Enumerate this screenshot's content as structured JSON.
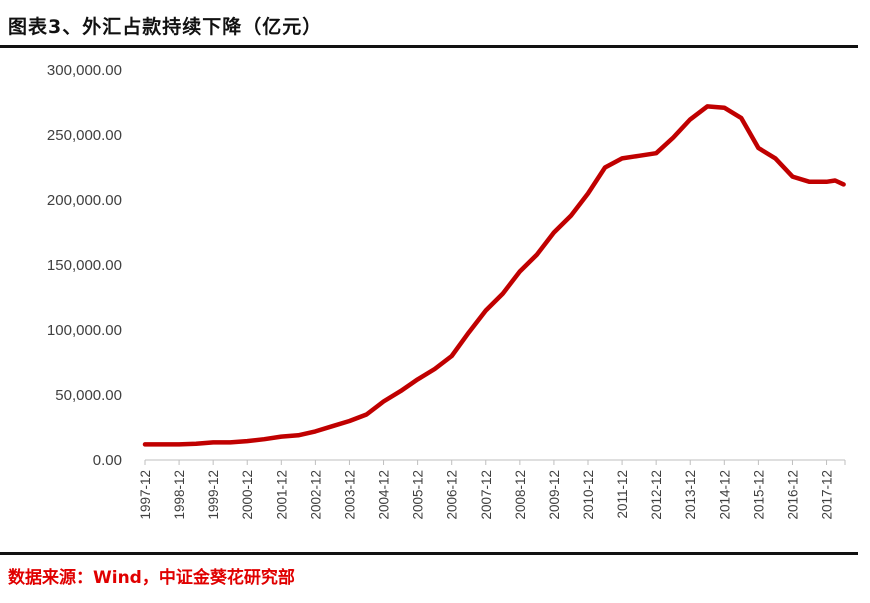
{
  "header": {
    "title": "图表3、外汇占款持续下降（亿元）"
  },
  "footer": {
    "source": "数据来源：Wind，中证金葵花研究部"
  },
  "colors": {
    "line": "#c00000",
    "axis": "#bfbfbf",
    "tick_text": "#404040",
    "source_text": "#e00000"
  },
  "chart_data": {
    "type": "line",
    "title": "图表3、外汇占款持续下降（亿元）",
    "xlabel": "",
    "ylabel": "",
    "ylim": [
      0,
      300000
    ],
    "y_ticks": [
      "0.00",
      "50,000.00",
      "100,000.00",
      "150,000.00",
      "200,000.00",
      "250,000.00",
      "300,000.00"
    ],
    "x_ticks": [
      "1997-12",
      "1998-12",
      "1999-12",
      "2000-12",
      "2001-12",
      "2002-12",
      "2003-12",
      "2004-12",
      "2005-12",
      "2006-12",
      "2007-12",
      "2008-12",
      "2009-12",
      "2010-12",
      "2011-12",
      "2012-12",
      "2013-12",
      "2014-12",
      "2015-12",
      "2016-12",
      "2017-12"
    ],
    "grid": false,
    "legend": "none",
    "series": [
      {
        "x": [
          "1997-12",
          "1998-06",
          "1998-12",
          "1999-06",
          "1999-12",
          "2000-06",
          "2000-12",
          "2001-06",
          "2001-12",
          "2002-06",
          "2002-12",
          "2003-06",
          "2003-12",
          "2004-06",
          "2004-12",
          "2005-06",
          "2005-12",
          "2006-06",
          "2006-12",
          "2007-06",
          "2007-12",
          "2008-06",
          "2008-12",
          "2009-06",
          "2009-12",
          "2010-06",
          "2010-12",
          "2011-06",
          "2011-12",
          "2012-06",
          "2012-12",
          "2013-06",
          "2013-12",
          "2014-06",
          "2014-12",
          "2015-06",
          "2015-12",
          "2016-06",
          "2016-12",
          "2017-06",
          "2017-12",
          "2018-03",
          "2018-06"
        ],
        "values": [
          12000,
          12000,
          12000,
          12500,
          13500,
          13500,
          14500,
          16000,
          18000,
          19000,
          22000,
          26000,
          30000,
          35000,
          45000,
          53000,
          62000,
          70000,
          80000,
          98000,
          115000,
          128000,
          145000,
          158000,
          175000,
          188000,
          205000,
          225000,
          232000,
          234000,
          236000,
          248000,
          262000,
          272000,
          271000,
          263000,
          240000,
          232000,
          218000,
          214000,
          214000,
          215000,
          212000
        ]
      }
    ]
  }
}
